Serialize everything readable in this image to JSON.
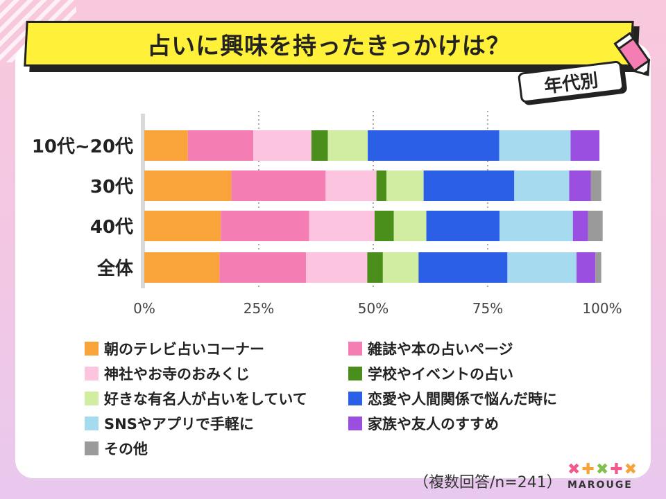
{
  "header": {
    "title": "占いに興味を持ったきっかけは？",
    "tag": "年代別"
  },
  "note": "（複数回答/n=241）",
  "brand": {
    "name": "MAROUGE",
    "mark_colors": [
      "#f05a8c",
      "#f7a33a",
      "#7fc04a",
      "#f05a8c",
      "#f7a33a"
    ]
  },
  "chart_data": {
    "type": "bar",
    "orientation": "horizontal",
    "stacked": true,
    "percent": true,
    "categories": [
      "10代~20代",
      "30代",
      "40代",
      "全体"
    ],
    "xlim": [
      0,
      100
    ],
    "xticks": [
      "0%",
      "25%",
      "50%",
      "75%",
      "100%"
    ],
    "grid": "dotted vertical lines",
    "legend_position": "bottom",
    "series": [
      {
        "name": "朝のテレビ占いコーナー",
        "color": "#f9a33b",
        "values": [
          9.5,
          19.0,
          16.7,
          16.4
        ]
      },
      {
        "name": "雑誌や本の占いページ",
        "color": "#f47eb3",
        "values": [
          14.3,
          20.6,
          19.3,
          18.9
        ]
      },
      {
        "name": "神社やお寺のおみくじ",
        "color": "#fdc4e0",
        "values": [
          12.7,
          11.1,
          14.3,
          13.4
        ]
      },
      {
        "name": "学校やイベントの占い",
        "color": "#4a8e1c",
        "values": [
          3.6,
          2.2,
          4.2,
          3.4
        ]
      },
      {
        "name": "好きな有名人が占いをしていて",
        "color": "#d0eda2",
        "values": [
          8.7,
          8.1,
          7.1,
          7.8
        ]
      },
      {
        "name": "恋愛や人間関係で悩んだ時に",
        "color": "#2b5fe6",
        "values": [
          28.7,
          19.8,
          16.0,
          19.4
        ]
      },
      {
        "name": "SNSやアプリで手軽に",
        "color": "#a6dbef",
        "values": [
          15.6,
          12.0,
          16.0,
          15.1
        ]
      },
      {
        "name": "家族や友人のすすめ",
        "color": "#9b4fe0",
        "values": [
          6.3,
          4.7,
          3.3,
          4.1
        ]
      },
      {
        "name": "その他",
        "color": "#9a9a9a",
        "values": [
          0,
          2.3,
          3.2,
          1.3
        ]
      }
    ]
  }
}
